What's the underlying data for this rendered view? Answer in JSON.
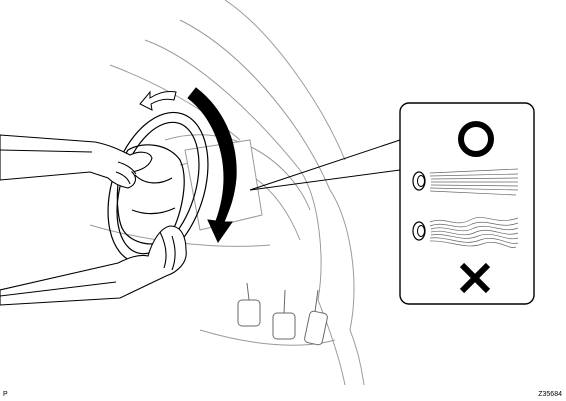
{
  "illustration": {
    "icons": {
      "correct": "circle-o-symbol",
      "incorrect": "cross-x-symbol",
      "rotation": "curved-arrow-icon",
      "upper_vent": "air-vent-icon",
      "lower_vent": "air-vent-icon"
    },
    "colors": {
      "line": "#000000",
      "light_line": "#9a9a9a",
      "background": "#ffffff"
    }
  },
  "corner_marks": {
    "left": "P",
    "right": "Z35684"
  }
}
